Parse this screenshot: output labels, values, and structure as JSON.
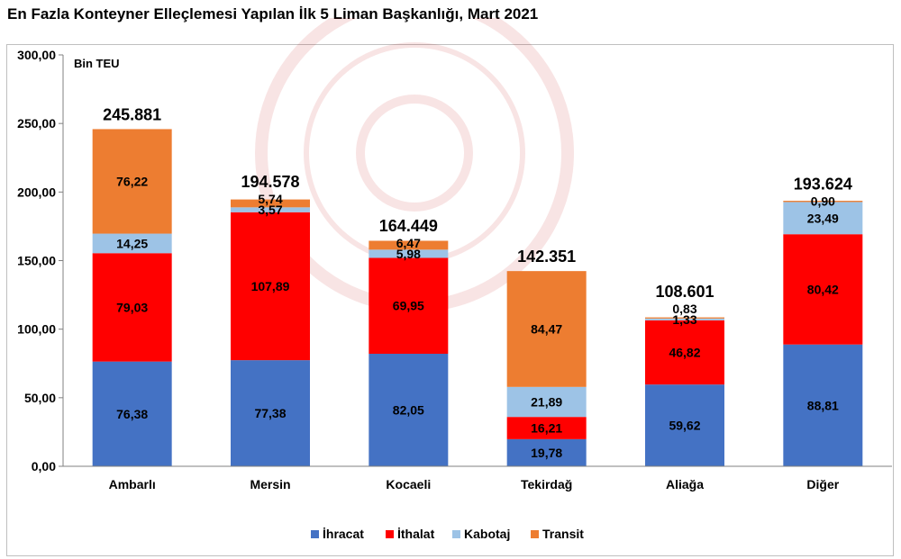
{
  "title": "En Fazla Konteyner Elleçlemesi Yapılan İlk 5 Liman Başkanlığı, Mart 2021",
  "colors": {
    "ihracat": "#4472c4",
    "ithalat": "#ff0000",
    "kabotaj": "#9dc3e6",
    "transit": "#ed7d31"
  },
  "chart_data": {
    "type": "bar",
    "stacked": true,
    "unit_label": "Bin TEU",
    "ylim": [
      0,
      300
    ],
    "yticks": [
      "0,00",
      "50,00",
      "100,00",
      "150,00",
      "200,00",
      "250,00",
      "300,00"
    ],
    "ytick_values": [
      0,
      50,
      100,
      150,
      200,
      250,
      300
    ],
    "categories": [
      "Ambarlı",
      "Mersin",
      "Kocaeli",
      "Tekirdağ",
      "Aliağa",
      "Diğer"
    ],
    "totals": [
      "245.881",
      "194.578",
      "164.449",
      "142.351",
      "108.601",
      "193.624"
    ],
    "series": [
      {
        "name": "İhracat",
        "key": "ihracat",
        "values": [
          76.38,
          77.38,
          82.05,
          19.78,
          59.62,
          88.81
        ],
        "labels": [
          "76,38",
          "77,38",
          "82,05",
          "19,78",
          "59,62",
          "88,81"
        ]
      },
      {
        "name": "İthalat",
        "key": "ithalat",
        "values": [
          79.03,
          107.89,
          69.95,
          16.21,
          46.82,
          80.42
        ],
        "labels": [
          "79,03",
          "107,89",
          "69,95",
          "16,21",
          "46,82",
          "80,42"
        ]
      },
      {
        "name": "Kabotaj",
        "key": "kabotaj",
        "values": [
          14.25,
          3.57,
          5.98,
          21.89,
          1.33,
          23.49
        ],
        "labels": [
          "14,25",
          "3,57",
          "5,98",
          "21,89",
          "1,33",
          "23,49"
        ]
      },
      {
        "name": "Transit",
        "key": "transit",
        "values": [
          76.22,
          5.74,
          6.47,
          84.47,
          0.83,
          0.9
        ],
        "labels": [
          "76,22",
          "5,74",
          "6,47",
          "84,47",
          "0,83",
          "0,90"
        ]
      }
    ],
    "legend_position": "bottom",
    "grid": false
  }
}
